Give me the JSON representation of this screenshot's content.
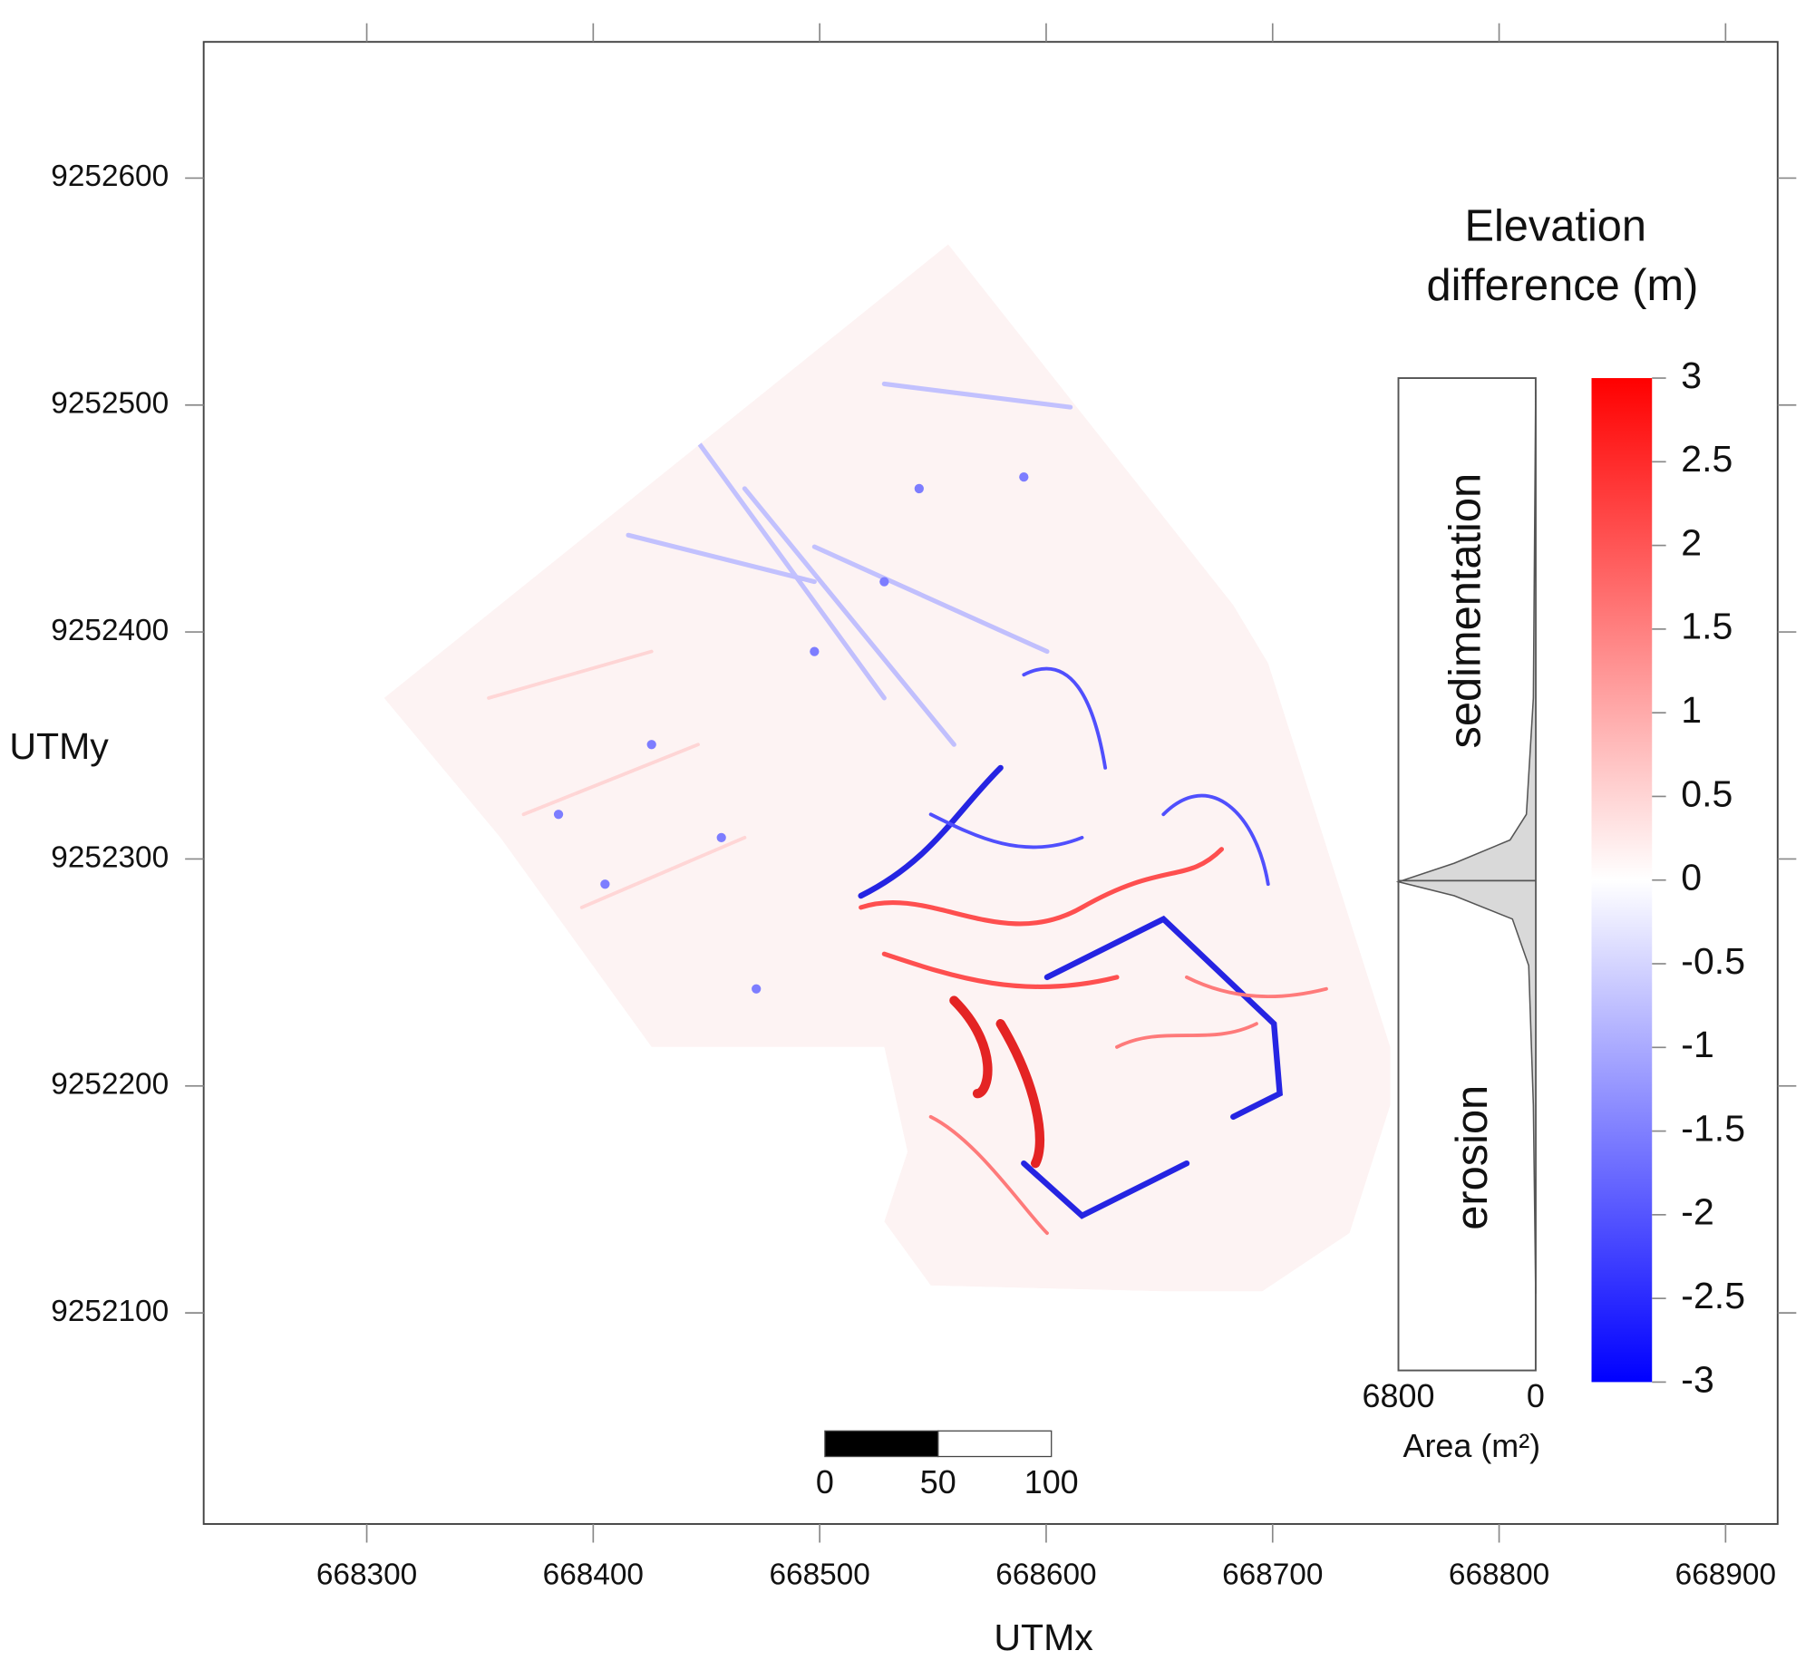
{
  "chart_data": {
    "type": "map",
    "x_label": "UTMx",
    "y_label": "UTMy",
    "xlim": [
      668228,
      668923
    ],
    "ylim": [
      9252007,
      9252660
    ],
    "xticks": [
      668300,
      668400,
      668500,
      668600,
      668700,
      668800,
      668900
    ],
    "yticks": [
      9252100,
      9252200,
      9252300,
      9252400,
      9252500,
      9252600
    ],
    "colorbar": {
      "title": [
        "Elevation",
        "difference (m)"
      ],
      "lim": [
        -3,
        3
      ],
      "ticks": [
        -3,
        -2.5,
        -2,
        -1.5,
        -1,
        -0.5,
        0,
        0.5,
        1,
        1.5,
        2,
        2.5,
        3
      ],
      "colors": [
        "#0000ff",
        "#ffffff",
        "#ff0000"
      ]
    },
    "histogram": {
      "upper_label": "sedimentation",
      "lower_label": "erosion",
      "x_label": "Area (m²)",
      "xlim": [
        6800,
        0
      ],
      "xticks": [
        6800,
        0
      ],
      "color": "#d9d9d9"
    },
    "scalebar": {
      "ticks": [
        0,
        50,
        100
      ]
    }
  }
}
